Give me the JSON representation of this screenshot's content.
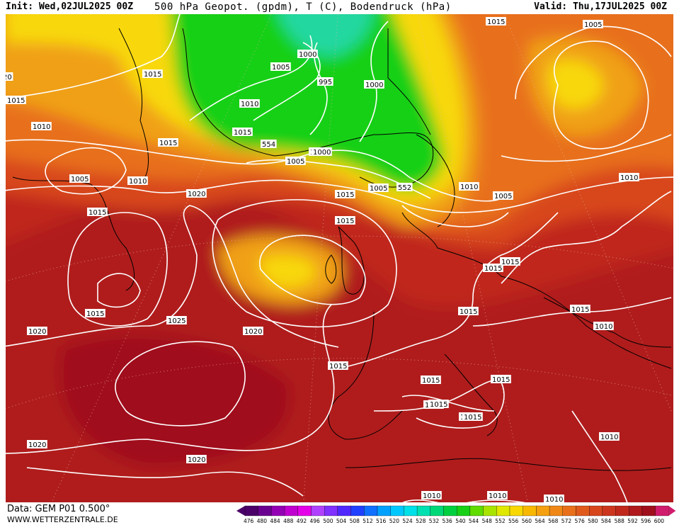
{
  "header": {
    "init_label": "Init:",
    "init_value": "Wed,02JUL2025 00Z",
    "title": "500 hPa Geopot. (gpdm), T (C), Bodendruck (hPa)",
    "valid_label": "Valid:",
    "valid_value": "Thu,17JUL2025 00Z"
  },
  "footer": {
    "data_source": "Data: GEM P01 0.500°",
    "website": "WWW.WETTERZENTRALE.DE"
  },
  "map": {
    "region": "North Atlantic and Europe",
    "isobar_labels": [
      "1015",
      "1005",
      "20",
      "1015",
      "1015",
      "1010",
      "1005",
      "1000",
      "995",
      "1000",
      "1010",
      "1015",
      "1015",
      "1005",
      "1010",
      "554",
      "1000",
      "1005",
      "552",
      "1010",
      "1005",
      "1010",
      "1015",
      "1015",
      "1015",
      "1005",
      "1010",
      "1020",
      "1015",
      "1015",
      "1015",
      "1015",
      "1015",
      "1015",
      "1010",
      "1015",
      "1025",
      "1020",
      "1020",
      "1015",
      "1015",
      "1015",
      "1015",
      "1015",
      "1010",
      "1020",
      "1020",
      "1010",
      "1010",
      "1010"
    ],
    "colors": {
      "sea_dark_red": "#a8101c",
      "red": "#c0281c",
      "orange_red": "#d8461e",
      "orange": "#e8701a",
      "amber": "#f0a014",
      "yellow": "#f8d80c",
      "lime": "#c8e600",
      "green": "#18d018",
      "teal": "#20d8a0",
      "isobar": "#ffffff",
      "coastline": "#000000"
    }
  },
  "legend": {
    "values": [
      "476",
      "480",
      "484",
      "488",
      "492",
      "496",
      "500",
      "504",
      "508",
      "512",
      "516",
      "520",
      "524",
      "528",
      "532",
      "536",
      "540",
      "544",
      "548",
      "552",
      "556",
      "560",
      "564",
      "568",
      "572",
      "576",
      "580",
      "584",
      "588",
      "592",
      "596",
      "600"
    ],
    "colors": [
      "#4a0068",
      "#6a0090",
      "#9400b4",
      "#c000d0",
      "#e400e8",
      "#b040ff",
      "#8030ff",
      "#5028ff",
      "#2040ff",
      "#1070ff",
      "#00a0ff",
      "#00c8ff",
      "#00e0e8",
      "#00e0b0",
      "#00d878",
      "#00d040",
      "#18d018",
      "#60dc00",
      "#a8e400",
      "#e0e800",
      "#f8d800",
      "#f8b800",
      "#f4a010",
      "#f08818",
      "#e8701a",
      "#e05a1c",
      "#d8461e",
      "#cc361e",
      "#c0281c",
      "#b01a1c",
      "#a0101c",
      "#d01c6c"
    ]
  }
}
